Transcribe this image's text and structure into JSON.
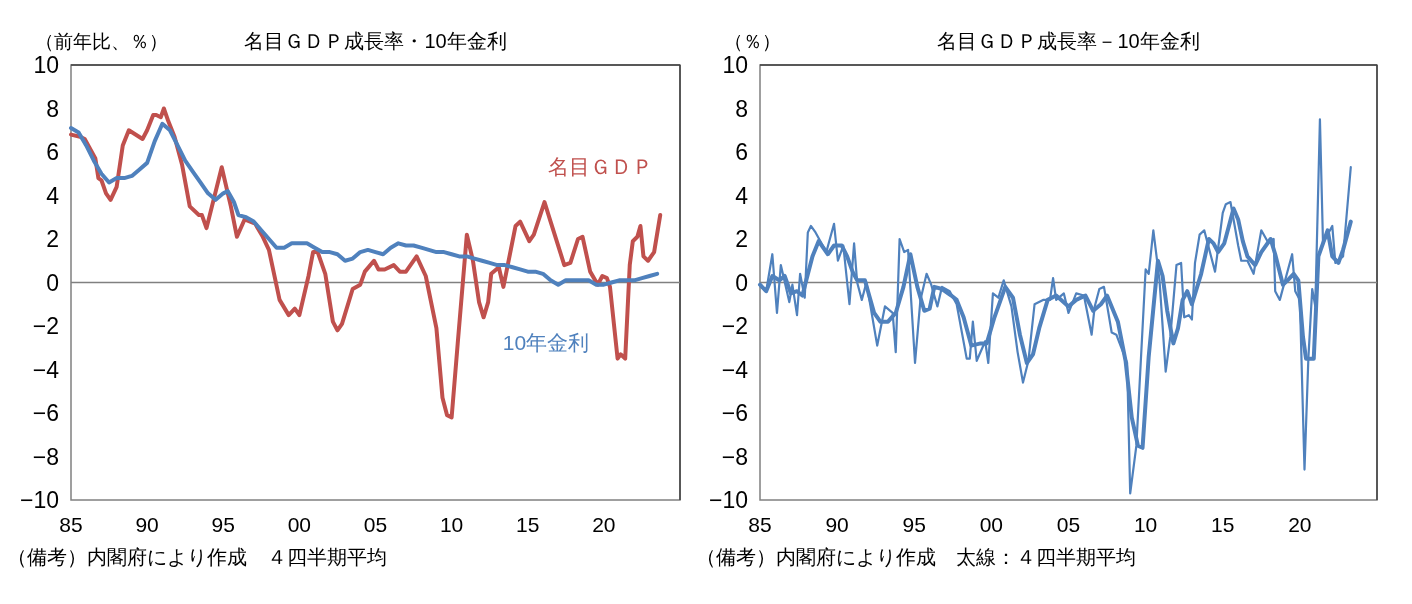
{
  "chart_data": [
    {
      "type": "line",
      "title": "名目ＧＤＰ成長率・10年金利",
      "ylabel": "（前年比、％）",
      "xlim": [
        1985,
        2025
      ],
      "xticks": [
        {
          "value": 1985,
          "label": "85"
        },
        {
          "value": 1990,
          "label": "90"
        },
        {
          "value": 1995,
          "label": "95"
        },
        {
          "value": 2000,
          "label": "00"
        },
        {
          "value": 2005,
          "label": "05"
        },
        {
          "value": 2010,
          "label": "10"
        },
        {
          "value": 2015,
          "label": "15"
        },
        {
          "value": 2020,
          "label": "20"
        }
      ],
      "ylim": [
        -10,
        10
      ],
      "yticks": [
        -10,
        -8,
        -6,
        -4,
        -2,
        0,
        2,
        4,
        6,
        8,
        10
      ],
      "grid": false,
      "legend": false,
      "marker": "none",
      "line_style": "solid",
      "ref_lines": [
        {
          "axis": "y",
          "value": 0,
          "label": null,
          "color": "#808080"
        }
      ],
      "annotations": [
        "（備考）内閣府により作成　４四半期平均"
      ],
      "series": [
        {
          "name": "名目ＧＤＰ",
          "color": "#c0504d",
          "x": [
            1985.0,
            1985.6,
            1985.9,
            1986.6,
            1986.8,
            1987.0,
            1987.3,
            1987.6,
            1988.0,
            1988.4,
            1988.8,
            1989.7,
            1990.0,
            1990.4,
            1990.6,
            1990.9,
            1991.1,
            1991.4,
            1991.8,
            1992.3,
            1992.8,
            1993.4,
            1993.6,
            1993.9,
            1994.9,
            1995.5,
            1995.9,
            1996.4,
            1997.1,
            1997.6,
            1998.0,
            1998.7,
            1999.3,
            1999.7,
            2000.0,
            2000.6,
            2000.9,
            2001.2,
            2001.7,
            2002.2,
            2002.5,
            2002.8,
            2003.5,
            2004.0,
            2004.3,
            2004.9,
            2005.2,
            2005.6,
            2006.2,
            2006.6,
            2007.0,
            2007.7,
            2008.3,
            2009.0,
            2009.4,
            2009.7,
            2010.0,
            2010.4,
            2011.0,
            2011.4,
            2011.8,
            2012.1,
            2012.4,
            2012.6,
            2013.1,
            2013.4,
            2014.2,
            2014.5,
            2015.1,
            2015.4,
            2016.1,
            2016.5,
            2017.4,
            2017.8,
            2018.3,
            2018.6,
            2019.1,
            2019.6,
            2019.9,
            2020.2,
            2020.4,
            2020.9,
            2021.1,
            2021.4,
            2021.7,
            2021.9,
            2022.2,
            2022.4,
            2022.6,
            2022.9,
            2023.3,
            2023.7
          ],
          "values": [
            6.8,
            6.7,
            6.6,
            5.7,
            4.8,
            4.7,
            4.1,
            3.8,
            4.4,
            6.3,
            7.0,
            6.6,
            7.0,
            7.7,
            7.7,
            7.6,
            8.0,
            7.4,
            6.7,
            5.4,
            3.5,
            3.1,
            3.1,
            2.5,
            5.3,
            3.5,
            2.1,
            2.9,
            2.7,
            2.1,
            1.5,
            -0.8,
            -1.5,
            -1.2,
            -1.5,
            0.3,
            1.4,
            1.4,
            0.4,
            -1.8,
            -2.2,
            -1.9,
            -0.3,
            -0.1,
            0.5,
            1.0,
            0.6,
            0.6,
            0.8,
            0.5,
            0.5,
            1.2,
            0.3,
            -2.1,
            -5.3,
            -6.1,
            -6.2,
            -2.8,
            2.2,
            1.0,
            -0.9,
            -1.6,
            -0.9,
            0.4,
            0.7,
            -0.2,
            2.6,
            2.8,
            1.9,
            2.2,
            3.7,
            2.8,
            0.8,
            0.9,
            2.0,
            2.1,
            0.5,
            -0.1,
            0.3,
            0.2,
            -0.2,
            -3.5,
            -3.3,
            -3.5,
            0.8,
            1.9,
            2.1,
            2.6,
            1.2,
            1.0,
            1.4,
            3.1
          ]
        },
        {
          "name": "10年金利",
          "color": "#4f81bd",
          "x": [
            1985.0,
            1985.5,
            1986.0,
            1986.5,
            1987.0,
            1987.5,
            1988.0,
            1988.5,
            1989.0,
            1989.5,
            1990.0,
            1990.5,
            1991.0,
            1991.5,
            1992.0,
            1992.5,
            1993.0,
            1993.5,
            1994.0,
            1994.5,
            1995.0,
            1995.3,
            1995.7,
            1996.0,
            1996.5,
            1997.0,
            1997.5,
            1998.0,
            1998.5,
            1999.0,
            1999.5,
            2000.0,
            2000.5,
            2001.0,
            2001.5,
            2002.0,
            2002.5,
            2003.0,
            2003.5,
            2004.0,
            2004.5,
            2005.0,
            2005.5,
            2006.0,
            2006.5,
            2007.0,
            2007.5,
            2008.0,
            2008.5,
            2009.0,
            2009.5,
            2010.0,
            2010.5,
            2011.0,
            2011.5,
            2012.0,
            2012.5,
            2013.0,
            2013.5,
            2014.0,
            2014.5,
            2015.0,
            2015.5,
            2016.0,
            2016.5,
            2017.0,
            2017.5,
            2018.0,
            2018.5,
            2019.0,
            2019.5,
            2020.0,
            2020.5,
            2021.0,
            2021.5,
            2022.0,
            2022.5,
            2023.0,
            2023.5
          ],
          "values": [
            7.1,
            6.9,
            6.3,
            5.6,
            5.0,
            4.6,
            4.8,
            4.8,
            4.9,
            5.2,
            5.5,
            6.5,
            7.3,
            7.0,
            6.3,
            5.6,
            5.1,
            4.6,
            4.1,
            3.8,
            4.1,
            4.2,
            3.7,
            3.1,
            3.0,
            2.8,
            2.4,
            2.0,
            1.6,
            1.6,
            1.8,
            1.8,
            1.8,
            1.6,
            1.4,
            1.4,
            1.3,
            1.0,
            1.1,
            1.4,
            1.5,
            1.4,
            1.3,
            1.6,
            1.8,
            1.7,
            1.7,
            1.6,
            1.5,
            1.4,
            1.4,
            1.3,
            1.2,
            1.2,
            1.1,
            1.0,
            0.9,
            0.8,
            0.8,
            0.7,
            0.6,
            0.5,
            0.5,
            0.4,
            0.1,
            -0.1,
            0.1,
            0.1,
            0.1,
            0.1,
            -0.1,
            -0.1,
            0.0,
            0.1,
            0.1,
            0.1,
            0.2,
            0.3,
            0.4
          ]
        }
      ]
    },
    {
      "type": "line",
      "title": "名目ＧＤＰ成長率－10年金利",
      "ylabel": "（％）",
      "xlim": [
        1985,
        2025
      ],
      "xticks": [
        {
          "value": 1985,
          "label": "85"
        },
        {
          "value": 1990,
          "label": "90"
        },
        {
          "value": 1995,
          "label": "95"
        },
        {
          "value": 2000,
          "label": "00"
        },
        {
          "value": 2005,
          "label": "05"
        },
        {
          "value": 2010,
          "label": "10"
        },
        {
          "value": 2015,
          "label": "15"
        },
        {
          "value": 2020,
          "label": "20"
        }
      ],
      "ylim": [
        -10,
        10
      ],
      "yticks": [
        -10,
        -8,
        -6,
        -4,
        -2,
        0,
        2,
        4,
        6,
        8,
        10
      ],
      "grid": false,
      "legend": false,
      "marker": "none",
      "line_style": "solid",
      "ref_lines": [
        {
          "axis": "y",
          "value": 0,
          "label": null,
          "color": "#808080"
        }
      ],
      "annotations": [
        "（備考）内閣府により作成　太線：４四半期平均"
      ],
      "series": [
        {
          "color": "#4f81bd",
          "x": [
            1985.06,
            1985.4,
            1985.8,
            1986.1,
            1986.35,
            1986.9,
            1987.1,
            1987.4,
            1987.6,
            1987.9,
            1988.1,
            1988.3,
            1988.6,
            1989.3,
            1989.8,
            1990.05,
            1990.4,
            1990.8,
            1991.1,
            1991.3,
            1991.6,
            1991.9,
            1992.6,
            1993.1,
            1993.6,
            1993.8,
            1994.05,
            1994.35,
            1994.6,
            1995.05,
            1995.4,
            1995.8,
            1996.1,
            1996.5,
            1996.8,
            1997.3,
            1997.75,
            1998.4,
            1998.6,
            1998.8,
            1999.05,
            1999.6,
            1999.8,
            2000.1,
            2000.45,
            2000.8,
            2001.3,
            2001.7,
            2002.05,
            2002.4,
            2002.8,
            2003.35,
            2003.8,
            2004.0,
            2004.2,
            2004.7,
            2005.0,
            2005.5,
            2006.0,
            2006.5,
            2006.7,
            2007.0,
            2007.3,
            2007.8,
            2008.1,
            2008.8,
            2009.0,
            2009.4,
            2010.0,
            2010.2,
            2010.5,
            2010.9,
            2011.3,
            2011.6,
            2012.0,
            2012.3,
            2012.5,
            2012.8,
            2013.0,
            2013.2,
            2013.5,
            2013.8,
            2014.5,
            2015.0,
            2015.2,
            2015.5,
            2016.0,
            2016.2,
            2016.6,
            2017.0,
            2017.5,
            2017.9,
            2018.3,
            2018.4,
            2018.7,
            2019.5,
            2019.7,
            2020.0,
            2020.3,
            2020.55,
            2020.8,
            2021.0,
            2021.3,
            2021.5,
            2022.1,
            2022.3,
            2022.8,
            2023.3
          ],
          "values": [
            -0.2,
            -0.4,
            1.3,
            -1.4,
            0.8,
            -0.9,
            -0.1,
            -1.5,
            0.4,
            -0.7,
            2.3,
            2.6,
            2.3,
            1.4,
            2.7,
            1.0,
            1.7,
            -1.0,
            1.8,
            0.0,
            -0.8,
            0.0,
            -2.9,
            -1.1,
            -1.4,
            -3.2,
            2.0,
            1.4,
            1.5,
            -3.7,
            -0.8,
            0.4,
            -0.1,
            -1.1,
            -0.2,
            -0.4,
            -1.0,
            -3.5,
            -3.5,
            -1.8,
            -3.6,
            -2.7,
            -3.7,
            -0.5,
            -0.7,
            0.1,
            -1.1,
            -3.2,
            -4.6,
            -3.6,
            -1.0,
            -0.8,
            -0.8,
            0.2,
            -0.8,
            -0.5,
            -1.4,
            -0.5,
            -0.6,
            -2.4,
            -1.1,
            -0.3,
            -0.2,
            -2.3,
            -2.4,
            -3.7,
            -9.7,
            -7.5,
            0.6,
            0.4,
            2.4,
            0.1,
            -4.1,
            -2.5,
            0.8,
            0.9,
            -1.6,
            -1.5,
            -1.7,
            0.9,
            2.2,
            2.4,
            0.5,
            3.2,
            3.6,
            3.7,
            1.7,
            1.0,
            1.0,
            0.4,
            2.4,
            1.9,
            2.0,
            -0.4,
            -0.8,
            1.3,
            -0.4,
            -0.8,
            -8.6,
            -3.5,
            -0.3,
            -1.1,
            7.5,
            1.8,
            2.6,
            0.9,
            1.2,
            5.3
          ]
        },
        {
          "color": "#4f81bd",
          "x": [
            1985.0,
            1985.4,
            1985.8,
            1986.25,
            1986.6,
            1987.0,
            1987.4,
            1987.75,
            1988.0,
            1988.4,
            1988.8,
            1989.4,
            1989.8,
            1990.3,
            1990.65,
            1991.0,
            1991.3,
            1991.8,
            1992.4,
            1992.8,
            1993.3,
            1993.8,
            1994.3,
            1994.75,
            1995.2,
            1995.65,
            1996.0,
            1996.3,
            1996.8,
            1997.4,
            1997.75,
            1998.2,
            1998.7,
            1999.3,
            1999.7,
            2000.2,
            2000.9,
            2001.4,
            2001.85,
            2002.3,
            2002.7,
            2003.1,
            2003.65,
            2004.2,
            2005.0,
            2005.5,
            2006.1,
            2006.6,
            2007.1,
            2007.5,
            2008.2,
            2008.7,
            2009.1,
            2009.5,
            2009.8,
            2010.2,
            2010.8,
            2011.1,
            2011.4,
            2011.8,
            2012.1,
            2012.4,
            2012.7,
            2013.0,
            2013.6,
            2014.1,
            2014.4,
            2014.7,
            2015.1,
            2015.4,
            2015.7,
            2016.0,
            2016.3,
            2016.6,
            2017.1,
            2017.5,
            2018.1,
            2018.4,
            2018.9,
            2019.2,
            2019.6,
            2019.9,
            2020.2,
            2020.4,
            2020.9,
            2021.2,
            2021.5,
            2021.8,
            2022.1,
            2022.5,
            2022.8,
            2023.3
          ],
          "values": [
            -0.1,
            -0.4,
            0.3,
            0.1,
            0.3,
            -0.5,
            -0.4,
            -0.6,
            0.1,
            1.2,
            1.9,
            1.3,
            1.7,
            1.7,
            1.2,
            0.5,
            0.1,
            0.1,
            -1.4,
            -1.8,
            -1.8,
            -1.4,
            -0.2,
            1.3,
            -0.2,
            -1.3,
            -1.2,
            -0.2,
            -0.3,
            -0.6,
            -0.8,
            -1.6,
            -2.9,
            -2.8,
            -2.8,
            -1.6,
            -0.2,
            -0.7,
            -2.4,
            -3.7,
            -3.3,
            -2.1,
            -0.8,
            -0.6,
            -1.1,
            -0.8,
            -0.6,
            -1.3,
            -1.0,
            -0.6,
            -1.8,
            -3.6,
            -6.2,
            -7.5,
            -7.6,
            -3.4,
            1.0,
            0.3,
            -1.3,
            -2.8,
            -2.1,
            -0.8,
            -0.4,
            -1.0,
            0.4,
            2.0,
            1.8,
            1.4,
            1.8,
            2.6,
            3.4,
            2.9,
            1.9,
            1.2,
            0.8,
            1.4,
            2.0,
            1.3,
            -0.1,
            0.1,
            0.4,
            0.1,
            -2.5,
            -3.5,
            -3.5,
            1.2,
            1.8,
            2.4,
            1.2,
            0.9,
            1.5,
            2.8
          ]
        }
      ]
    }
  ]
}
